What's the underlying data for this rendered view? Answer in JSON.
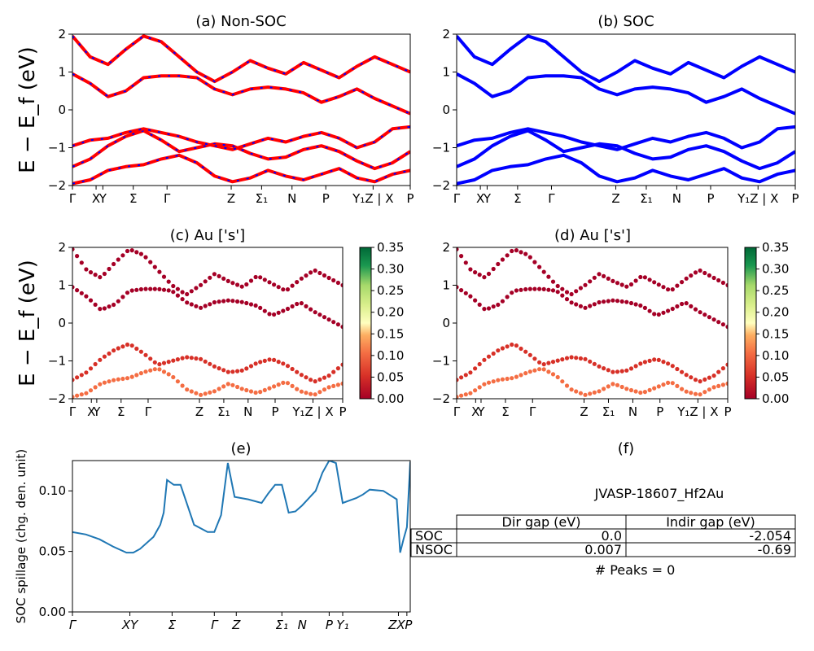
{
  "chart_data": [
    {
      "id": "a",
      "type": "line",
      "title": "(a) Non-SOC",
      "ylabel": "E − E_f (eV)",
      "ylim": [
        -2,
        2
      ],
      "yticks": [
        "2",
        "1",
        "0",
        "−1",
        "−2"
      ],
      "xtick_labels": [
        "Γ",
        "X",
        "Y",
        "Σ",
        "Γ",
        "Z",
        "Σ₁",
        "N",
        "P",
        "Y₁Z | X",
        "P"
      ],
      "series": [
        {
          "color": "#ff0000",
          "style": "solid over blue dashes",
          "bands": [
            [
              -1.95,
              -1.85,
              -1.6,
              -1.5,
              -1.45,
              -1.3,
              -1.2,
              -1.4,
              -1.75,
              -1.9,
              -1.8,
              -1.6,
              -1.75,
              -1.85,
              -1.7,
              -1.55,
              -1.8,
              -1.9,
              -1.7,
              -1.6
            ],
            [
              -1.5,
              -1.3,
              -0.95,
              -0.7,
              -0.55,
              -0.8,
              -1.1,
              -1.0,
              -0.9,
              -0.95,
              -1.15,
              -1.3,
              -1.25,
              -1.05,
              -0.95,
              -1.1,
              -1.35,
              -1.55,
              -1.4,
              -1.1
            ],
            [
              -0.95,
              -0.8,
              -0.75,
              -0.6,
              -0.5,
              -0.6,
              -0.7,
              -0.85,
              -0.95,
              -1.05,
              -0.9,
              -0.75,
              -0.85,
              -0.7,
              -0.6,
              -0.75,
              -1.0,
              -0.85,
              -0.5,
              -0.45
            ],
            [
              0.95,
              0.7,
              0.35,
              0.5,
              0.85,
              0.9,
              0.9,
              0.85,
              0.55,
              0.4,
              0.55,
              0.6,
              0.55,
              0.45,
              0.2,
              0.35,
              0.55,
              0.3,
              0.1,
              -0.1
            ],
            [
              1.95,
              1.4,
              1.2,
              1.6,
              1.95,
              1.8,
              1.4,
              1.0,
              0.75,
              1.0,
              1.3,
              1.1,
              0.95,
              1.25,
              1.05,
              0.85,
              1.15,
              1.4,
              1.2,
              1.0
            ]
          ]
        }
      ]
    },
    {
      "id": "b",
      "type": "line",
      "title": "(b) SOC",
      "ylim": [
        -2,
        2
      ],
      "yticks": [
        "2",
        "1",
        "0",
        "−1",
        "−2"
      ],
      "xtick_labels": [
        "Γ",
        "X",
        "Y",
        "Σ",
        "Γ",
        "Z",
        "Σ₁",
        "N",
        "P",
        "Y₁Z | X",
        "P"
      ],
      "series": [
        {
          "color": "#0000ff",
          "style": "solid",
          "bands": [
            [
              -1.95,
              -1.85,
              -1.6,
              -1.5,
              -1.45,
              -1.3,
              -1.2,
              -1.4,
              -1.75,
              -1.9,
              -1.8,
              -1.6,
              -1.75,
              -1.85,
              -1.7,
              -1.55,
              -1.8,
              -1.9,
              -1.7,
              -1.6
            ],
            [
              -1.5,
              -1.3,
              -0.95,
              -0.7,
              -0.55,
              -0.8,
              -1.1,
              -1.0,
              -0.9,
              -0.95,
              -1.15,
              -1.3,
              -1.25,
              -1.05,
              -0.95,
              -1.1,
              -1.35,
              -1.55,
              -1.4,
              -1.1
            ],
            [
              -0.95,
              -0.8,
              -0.75,
              -0.6,
              -0.5,
              -0.6,
              -0.7,
              -0.85,
              -0.95,
              -1.05,
              -0.9,
              -0.75,
              -0.85,
              -0.7,
              -0.6,
              -0.75,
              -1.0,
              -0.85,
              -0.5,
              -0.45
            ],
            [
              0.95,
              0.7,
              0.35,
              0.5,
              0.85,
              0.9,
              0.9,
              0.85,
              0.55,
              0.4,
              0.55,
              0.6,
              0.55,
              0.45,
              0.2,
              0.35,
              0.55,
              0.3,
              0.1,
              -0.1
            ],
            [
              1.95,
              1.4,
              1.2,
              1.6,
              1.95,
              1.8,
              1.4,
              1.0,
              0.75,
              1.0,
              1.3,
              1.1,
              0.95,
              1.25,
              1.05,
              0.85,
              1.15,
              1.4,
              1.2,
              1.0
            ]
          ]
        }
      ]
    },
    {
      "id": "c",
      "type": "scatter",
      "title": "(c)  Au ['s']",
      "ylabel": "E − E_f (eV)",
      "ylim": [
        -2,
        2
      ],
      "yticks": [
        "2",
        "1",
        "0",
        "−1",
        "−2"
      ],
      "xtick_labels": [
        "Γ",
        "X",
        "Y",
        "Σ",
        "Γ",
        "Z",
        "Σ₁",
        "N",
        "P",
        "Y₁Z | X",
        "P"
      ],
      "colorbar": {
        "cmap": "RdYlGn",
        "ticks": [
          "0.35",
          "0.30",
          "0.25",
          "0.20",
          "0.15",
          "0.10",
          "0.05",
          "0.00"
        ]
      },
      "bands": [
        [
          -1.95,
          -1.85,
          -1.6,
          -1.5,
          -1.45,
          -1.3,
          -1.2,
          -1.4,
          -1.75,
          -1.9,
          -1.8,
          -1.6,
          -1.75,
          -1.85,
          -1.7,
          -1.55,
          -1.8,
          -1.9,
          -1.7,
          -1.6
        ],
        [
          -1.5,
          -1.3,
          -0.95,
          -0.7,
          -0.55,
          -0.8,
          -1.1,
          -1.0,
          -0.9,
          -0.95,
          -1.15,
          -1.3,
          -1.25,
          -1.05,
          -0.95,
          -1.1,
          -1.35,
          -1.55,
          -1.4,
          -1.1
        ],
        [
          0.95,
          0.7,
          0.35,
          0.5,
          0.85,
          0.9,
          0.9,
          0.85,
          0.55,
          0.4,
          0.55,
          0.6,
          0.55,
          0.45,
          0.2,
          0.35,
          0.55,
          0.3,
          0.1,
          -0.1
        ],
        [
          1.95,
          1.4,
          1.2,
          1.6,
          1.95,
          1.8,
          1.4,
          1.0,
          0.75,
          1.0,
          1.3,
          1.1,
          0.95,
          1.25,
          1.05,
          0.85,
          1.15,
          1.4,
          1.2,
          1.0
        ]
      ],
      "weights": [
        0.08,
        0.04,
        0.0,
        0.0
      ]
    },
    {
      "id": "d",
      "type": "scatter",
      "title": "(d) Au ['s']",
      "ylim": [
        -2,
        2
      ],
      "yticks": [
        "2",
        "1",
        "0",
        "−1",
        "−2"
      ],
      "xtick_labels": [
        "Γ",
        "X",
        "Y",
        "Σ",
        "Γ",
        "Z",
        "Σ₁",
        "N",
        "P",
        "Y₁Z | X",
        "P"
      ],
      "colorbar": {
        "cmap": "RdYlGn",
        "ticks": [
          "0.35",
          "0.30",
          "0.25",
          "0.20",
          "0.15",
          "0.10",
          "0.05",
          "0.00"
        ]
      },
      "bands": [
        [
          -1.95,
          -1.85,
          -1.6,
          -1.5,
          -1.45,
          -1.3,
          -1.2,
          -1.4,
          -1.75,
          -1.9,
          -1.8,
          -1.6,
          -1.75,
          -1.85,
          -1.7,
          -1.55,
          -1.8,
          -1.9,
          -1.7,
          -1.6
        ],
        [
          -1.5,
          -1.3,
          -0.95,
          -0.7,
          -0.55,
          -0.8,
          -1.1,
          -1.0,
          -0.9,
          -0.95,
          -1.15,
          -1.3,
          -1.25,
          -1.05,
          -0.95,
          -1.1,
          -1.35,
          -1.55,
          -1.4,
          -1.1
        ],
        [
          0.95,
          0.7,
          0.35,
          0.5,
          0.85,
          0.9,
          0.9,
          0.85,
          0.55,
          0.4,
          0.55,
          0.6,
          0.55,
          0.45,
          0.2,
          0.35,
          0.55,
          0.3,
          0.1,
          -0.1
        ],
        [
          1.95,
          1.4,
          1.2,
          1.6,
          1.95,
          1.8,
          1.4,
          1.0,
          0.75,
          1.0,
          1.3,
          1.1,
          0.95,
          1.25,
          1.05,
          0.85,
          1.15,
          1.4,
          1.2,
          1.0
        ]
      ],
      "weights": [
        0.08,
        0.04,
        0.0,
        0.0
      ]
    },
    {
      "id": "e",
      "type": "line",
      "title": "(e)",
      "ylabel": "SOC spillage (chg. den. unit)",
      "ylim": [
        0,
        0.125
      ],
      "yticks": [
        "0.10",
        "0.05",
        "0.00"
      ],
      "xtick_labels": [
        "Γ",
        "XY",
        "Σ",
        "Γ",
        "Z",
        "Σ₁",
        "N",
        "P",
        "Y₁",
        "ZX",
        "P"
      ],
      "series": [
        {
          "color": "#1f77b4",
          "x": [
            0,
            0.04,
            0.08,
            0.12,
            0.16,
            0.18,
            0.2,
            0.24,
            0.26,
            0.27,
            0.28,
            0.3,
            0.32,
            0.36,
            0.4,
            0.42,
            0.44,
            0.46,
            0.48,
            0.52,
            0.56,
            0.58,
            0.6,
            0.62,
            0.64,
            0.66,
            0.68,
            0.72,
            0.74,
            0.76,
            0.78,
            0.8,
            0.82,
            0.84,
            0.86,
            0.88,
            0.92,
            0.96,
            0.97,
            0.98,
            0.99,
            1.0
          ],
          "y": [
            0.066,
            0.064,
            0.06,
            0.054,
            0.049,
            0.049,
            0.052,
            0.062,
            0.072,
            0.082,
            0.109,
            0.105,
            0.105,
            0.072,
            0.066,
            0.066,
            0.08,
            0.123,
            0.095,
            0.093,
            0.09,
            0.098,
            0.105,
            0.105,
            0.082,
            0.083,
            0.088,
            0.1,
            0.115,
            0.125,
            0.123,
            0.09,
            0.092,
            0.094,
            0.097,
            0.101,
            0.1,
            0.093,
            0.049,
            0.06,
            0.07,
            0.124
          ]
        }
      ]
    }
  ],
  "panel_f": {
    "title": "(f)",
    "material": "JVASP-18607_Hf2Au",
    "table": {
      "headers": [
        "",
        "Dir gap (eV)",
        "Indir gap (eV)"
      ],
      "rows": [
        [
          "SOC",
          "0.0",
          "-2.054"
        ],
        [
          "NSOC",
          "0.007",
          "-0.69"
        ]
      ]
    },
    "peaks": "# Peaks = 0"
  }
}
